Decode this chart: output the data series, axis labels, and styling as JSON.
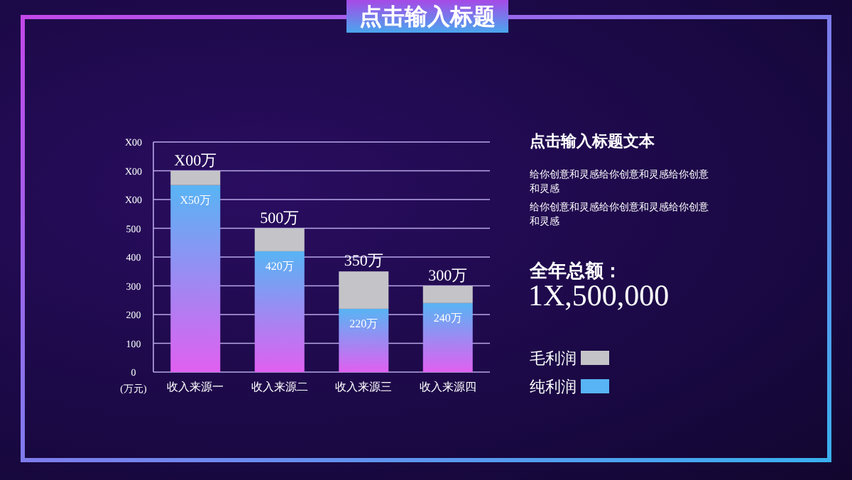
{
  "chart_data": {
    "type": "bar",
    "title": "点击输入标题",
    "ylabel": "(万元)",
    "categories": [
      "收入来源一",
      "收入来源二",
      "收入来源三",
      "收入来源四"
    ],
    "stacked": true,
    "series": [
      {
        "name": "纯利润",
        "color": "#58b4f4",
        "values": [
          650,
          420,
          220,
          240
        ],
        "value_labels": [
          "X50万",
          "420万",
          "220万",
          "240万"
        ]
      },
      {
        "name": "毛利润",
        "color": "#c4c4c8",
        "values": [
          50,
          80,
          130,
          60
        ]
      }
    ],
    "totals": [
      "X00万",
      "500万",
      "350万",
      "300万"
    ],
    "ylim": [
      0,
      800
    ],
    "yticks": [
      0,
      100,
      200,
      300,
      400,
      500,
      {
        "value": 600,
        "label": "X00"
      },
      {
        "value": 700,
        "label": "X00"
      },
      {
        "value": 800,
        "label": "X00"
      }
    ],
    "grid": "y",
    "legend": "right",
    "annotations": [
      "点击输入标题文本",
      "给你创意和灵感给你创意和灵感给你创意和灵感",
      "给你创意和灵感给你创意和灵感给你创意和灵感",
      "全年总额：",
      "1X,500,000"
    ]
  }
}
